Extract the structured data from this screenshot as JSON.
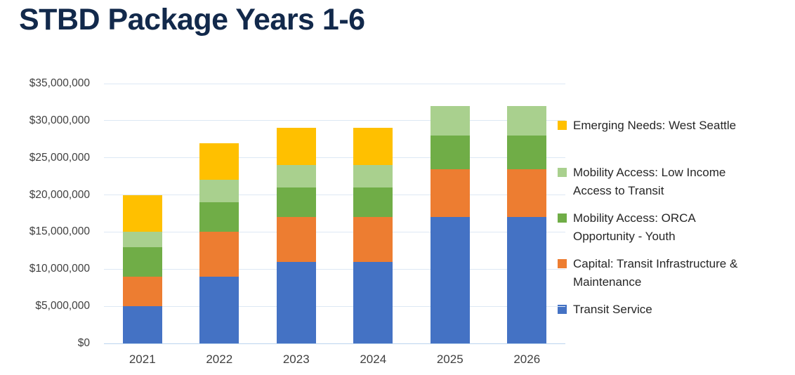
{
  "page": {
    "title": "STBD Package Years 1-6"
  },
  "colors": {
    "title_text": "#12294B",
    "gridline": "#DDE8F4",
    "axis_line": "#BCD4EE",
    "tick_text": "#404040",
    "legend_text": "#262626",
    "background": "#FFFFFF"
  },
  "chart_data": {
    "type": "bar",
    "stacked": true,
    "title": "STBD Package Years 1-6",
    "xlabel": "",
    "ylabel": "",
    "grid": true,
    "categories": [
      "2021",
      "2022",
      "2023",
      "2024",
      "2025",
      "2026"
    ],
    "series": [
      {
        "name": "Transit Service",
        "color": "#4472C4",
        "values": [
          5000000,
          9000000,
          11000000,
          11000000,
          17000000,
          17000000
        ]
      },
      {
        "name": "Capital: Transit Infrastructure & Maintenance",
        "color": "#ED7D31",
        "values": [
          4000000,
          6000000,
          6000000,
          6000000,
          6500000,
          6500000
        ]
      },
      {
        "name": "Mobility Access: ORCA Opportunity - Youth",
        "color": "#70AD47",
        "values": [
          4000000,
          4000000,
          4000000,
          4000000,
          4500000,
          4500000
        ]
      },
      {
        "name": "Mobility Access: Low Income Access to Transit",
        "color": "#A9D08E",
        "values": [
          2000000,
          3000000,
          3000000,
          3000000,
          4000000,
          4000000
        ]
      },
      {
        "name": "Emerging Needs: West Seattle",
        "color": "#FFC000",
        "values": [
          5000000,
          5000000,
          5000000,
          5000000,
          0,
          0
        ]
      }
    ],
    "totals": [
      20000000,
      27000000,
      29000000,
      29000000,
      32000000,
      32000000
    ],
    "y_axis": {
      "min": 0,
      "max": 35000000,
      "step": 5000000,
      "ticks": [
        "$0",
        "$5,000,000",
        "$10,000,000",
        "$15,000,000",
        "$20,000,000",
        "$25,000,000",
        "$30,000,000",
        "$35,000,000"
      ]
    },
    "legend": {
      "position": "right",
      "entries": [
        {
          "color": "#FFC000",
          "lines": [
            "Emerging Needs: West Seattle"
          ]
        },
        {
          "color": "#A9D08E",
          "lines": [
            "Mobility Access: Low Income",
            "Access to Transit"
          ]
        },
        {
          "color": "#70AD47",
          "lines": [
            "Mobility Access: ORCA",
            "Opportunity - Youth"
          ]
        },
        {
          "color": "#ED7D31",
          "lines": [
            "Capital: Transit Infrastructure &",
            "Maintenance"
          ]
        },
        {
          "color": "#4472C4",
          "lines": [
            "Transit Service"
          ]
        }
      ]
    }
  }
}
